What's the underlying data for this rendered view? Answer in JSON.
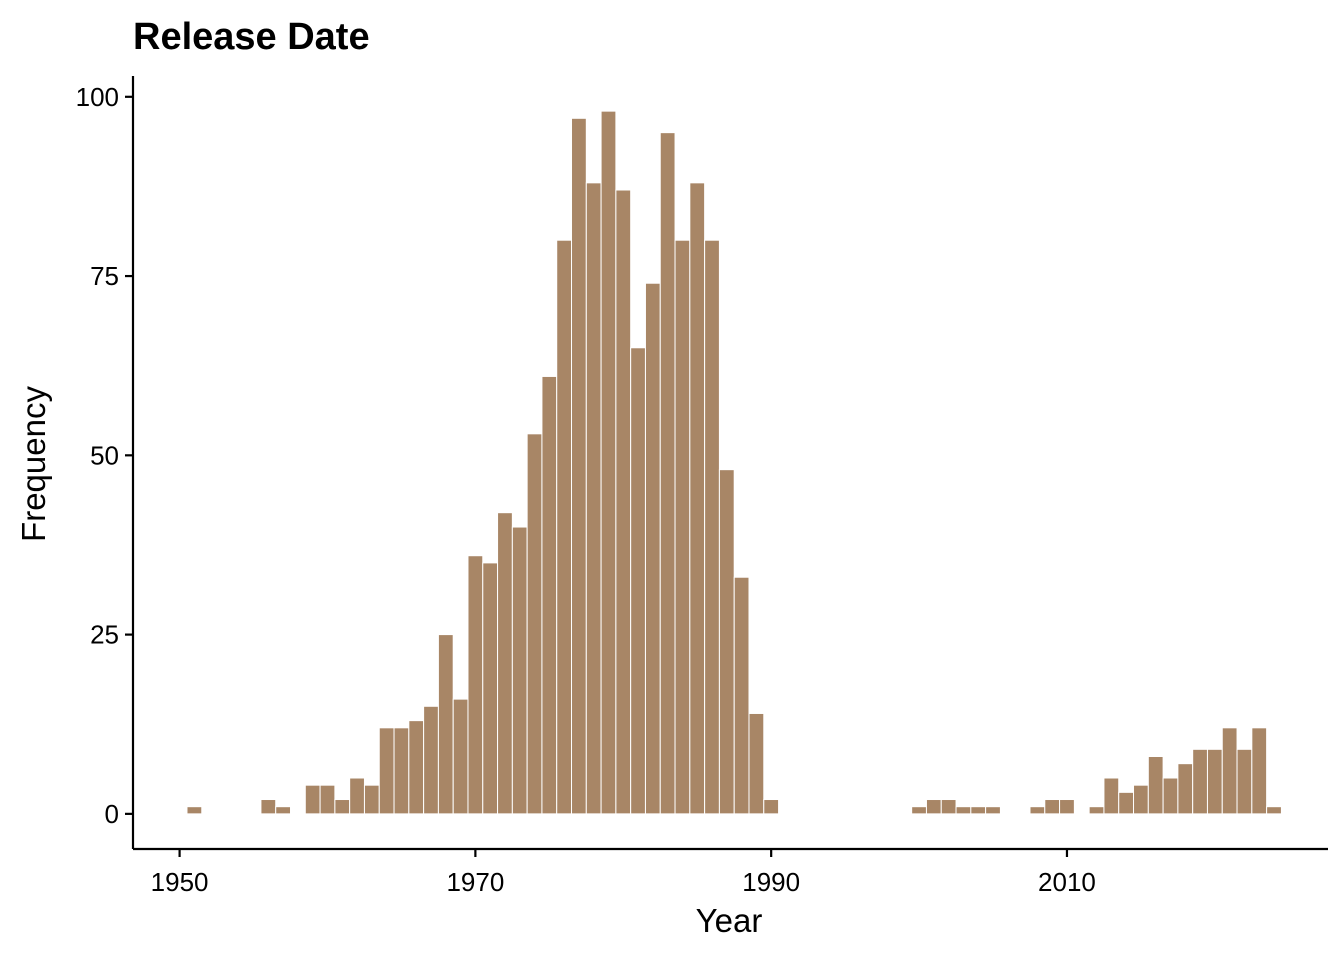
{
  "chart_data": {
    "type": "bar",
    "title": "Release Date",
    "xlabel": "Year",
    "ylabel": "Frequency",
    "xlim": [
      1946.85,
      2027.65
    ],
    "ylim": [
      -4.9,
      102.9
    ],
    "xticks": [
      1950,
      1970,
      1990,
      2010
    ],
    "yticks": [
      0,
      25,
      50,
      75,
      100
    ],
    "grid": false,
    "legend": "none",
    "bar_color": "#A88666",
    "x": [
      1951,
      1956,
      1957,
      1959,
      1960,
      1961,
      1962,
      1963,
      1964,
      1965,
      1966,
      1967,
      1968,
      1969,
      1970,
      1971,
      1972,
      1973,
      1974,
      1975,
      1976,
      1977,
      1978,
      1979,
      1980,
      1981,
      1982,
      1983,
      1984,
      1985,
      1986,
      1987,
      1988,
      1989,
      1990,
      2000,
      2001,
      2002,
      2003,
      2004,
      2005,
      2008,
      2009,
      2010,
      2012,
      2013,
      2014,
      2015,
      2016,
      2017,
      2018,
      2019,
      2020,
      2021,
      2022,
      2023,
      2024
    ],
    "values": [
      1,
      2,
      1,
      4,
      4,
      2,
      5,
      4,
      12,
      12,
      13,
      15,
      25,
      16,
      36,
      35,
      42,
      40,
      53,
      61,
      80,
      97,
      88,
      98,
      87,
      65,
      74,
      95,
      80,
      88,
      80,
      48,
      33,
      14,
      2,
      1,
      2,
      2,
      1,
      1,
      1,
      1,
      2,
      2,
      1,
      5,
      3,
      4,
      8,
      5,
      7,
      9,
      9,
      12,
      9,
      12,
      1
    ]
  }
}
